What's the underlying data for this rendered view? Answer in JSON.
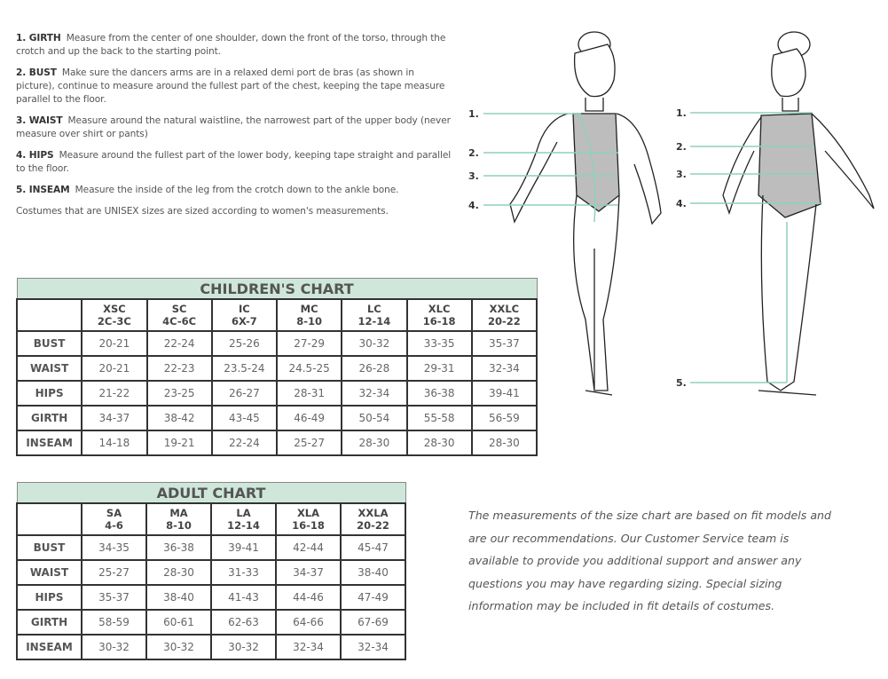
{
  "instructions": [
    {
      "term": "1. GIRTH",
      "text": "Measure from the center of one shoulder, down the front of the torso, through the crotch and up the back to the starting point."
    },
    {
      "term": "2. BUST",
      "text": "Make sure the dancers arms are in a relaxed demi port de bras (as shown in picture), continue to measure around the fullest part of the chest, keeping the tape measure parallel to the floor."
    },
    {
      "term": "3. WAIST",
      "text": "Measure around the natural waistline, the narrowest part of the upper body (never measure over shirt or pants)"
    },
    {
      "term": "4. HIPS",
      "text": "Measure around the fullest part of the lower body, keeping tape straight and parallel to the floor."
    },
    {
      "term": "5. INSEAM",
      "text": "Measure the inside of the leg from the crotch down to the ankle bone."
    }
  ],
  "unisex_note": "Costumes that are UNISEX sizes are sized according to women's measurements.",
  "children_chart": {
    "title": "CHILDREN'S CHART",
    "columns": [
      [
        "XSC",
        "2C-3C"
      ],
      [
        "SC",
        "4C-6C"
      ],
      [
        "IC",
        "6X-7"
      ],
      [
        "MC",
        "8-10"
      ],
      [
        "LC",
        "12-14"
      ],
      [
        "XLC",
        "16-18"
      ],
      [
        "XXLC",
        "20-22"
      ]
    ],
    "rows": [
      {
        "label": "BUST",
        "values": [
          "20-21",
          "22-24",
          "25-26",
          "27-29",
          "30-32",
          "33-35",
          "35-37"
        ]
      },
      {
        "label": "WAIST",
        "values": [
          "20-21",
          "22-23",
          "23.5-24",
          "24.5-25",
          "26-28",
          "29-31",
          "32-34"
        ]
      },
      {
        "label": "HIPS",
        "values": [
          "21-22",
          "23-25",
          "26-27",
          "28-31",
          "32-34",
          "36-38",
          "39-41"
        ]
      },
      {
        "label": "GIRTH",
        "values": [
          "34-37",
          "38-42",
          "43-45",
          "46-49",
          "50-54",
          "55-58",
          "56-59"
        ]
      },
      {
        "label": "INSEAM",
        "values": [
          "14-18",
          "19-21",
          "22-24",
          "25-27",
          "28-30",
          "28-30",
          "28-30"
        ]
      }
    ]
  },
  "adult_chart": {
    "title": "ADULT CHART",
    "columns": [
      [
        "SA",
        "4-6"
      ],
      [
        "MA",
        "8-10"
      ],
      [
        "LA",
        "12-14"
      ],
      [
        "XLA",
        "16-18"
      ],
      [
        "XXLA",
        "20-22"
      ]
    ],
    "rows": [
      {
        "label": "BUST",
        "values": [
          "34-35",
          "36-38",
          "39-41",
          "42-44",
          "45-47"
        ]
      },
      {
        "label": "WAIST",
        "values": [
          "25-27",
          "28-30",
          "31-33",
          "34-37",
          "38-40"
        ]
      },
      {
        "label": "HIPS",
        "values": [
          "35-37",
          "38-40",
          "41-43",
          "44-46",
          "47-49"
        ]
      },
      {
        "label": "GIRTH",
        "values": [
          "58-59",
          "60-61",
          "62-63",
          "64-66",
          "67-69"
        ]
      },
      {
        "label": "INSEAM",
        "values": [
          "30-32",
          "30-32",
          "30-32",
          "32-34",
          "32-34"
        ]
      }
    ]
  },
  "figure_labels": {
    "front": [
      "1.",
      "2.",
      "3.",
      "4."
    ],
    "side": [
      "1.",
      "2.",
      "3.",
      "4.",
      "5."
    ]
  },
  "disclaimer": "The measurements of the size chart are based on fit models and are our recommendations. Our Customer Service team is available to provide you additional support and answer any questions you may have regarding sizing. Special sizing information may be included in fit details of costumes.",
  "colors": {
    "header_fill": "#cfe7da",
    "measure_line": "#8fd1bd",
    "leotard": "#bdbdbd",
    "border": "#333333"
  }
}
